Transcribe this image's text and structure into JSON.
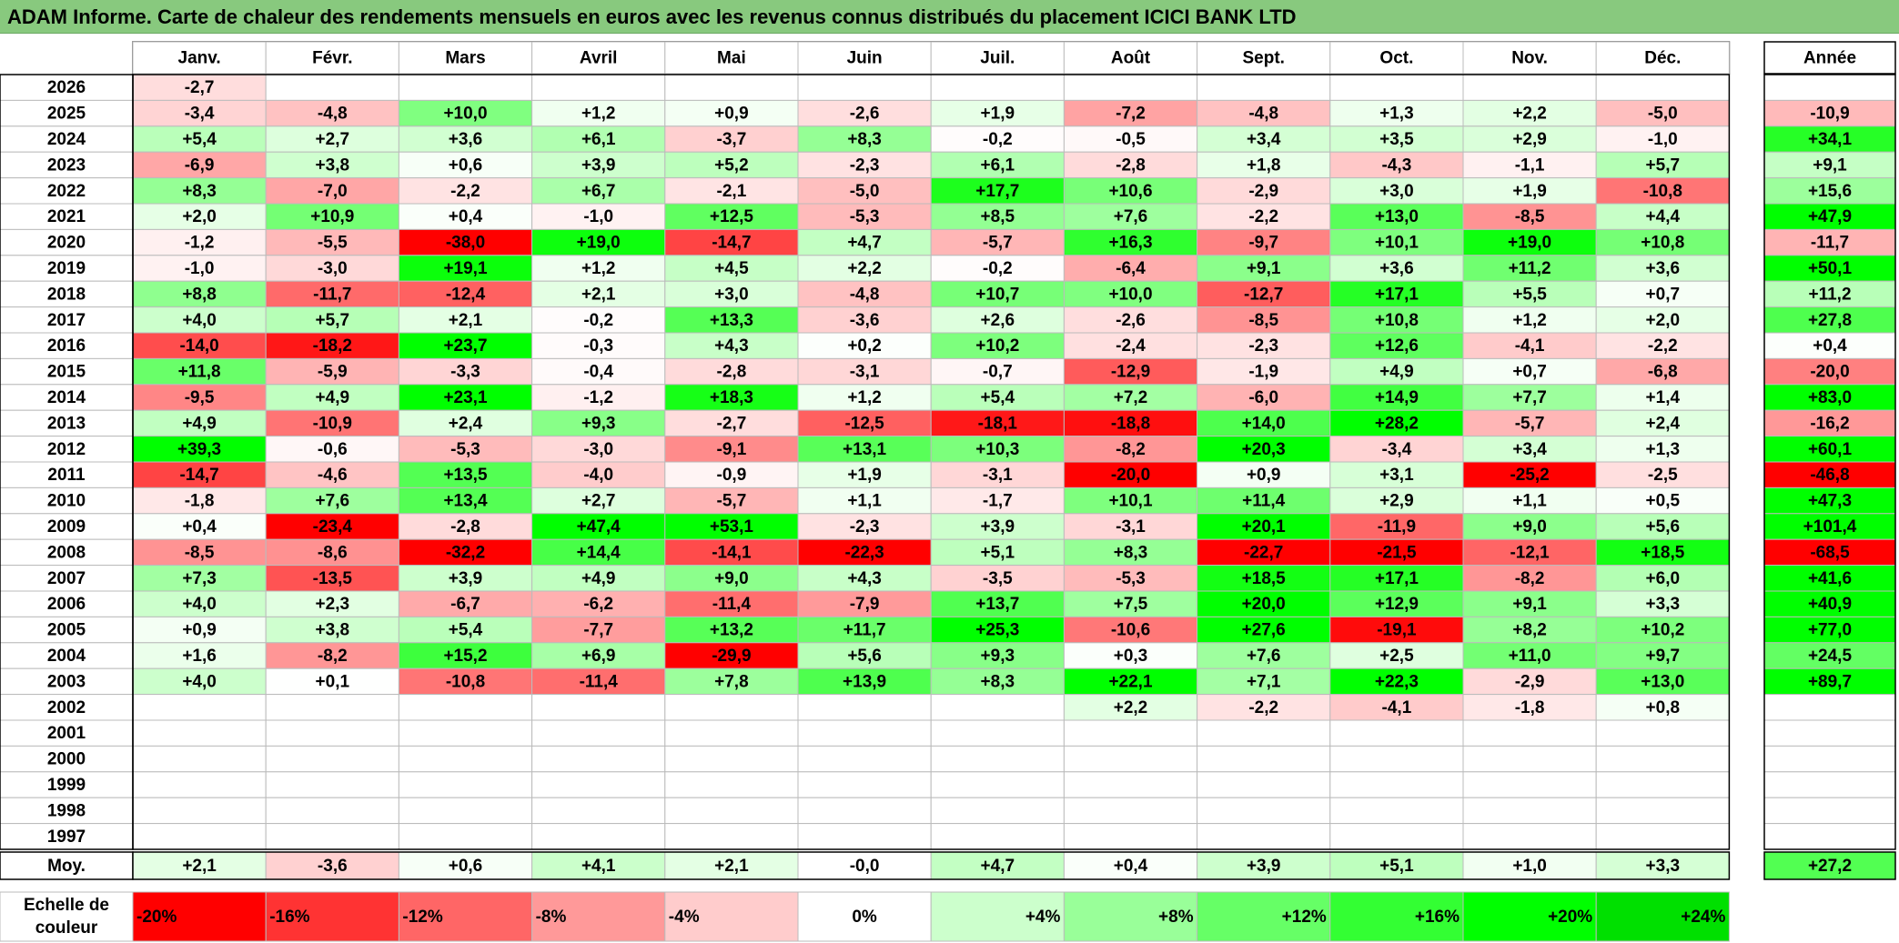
{
  "title": "ADAM Informe. Carte de chaleur des rendements mensuels en euros avec les revenus connus distribués du placement ICICI BANK LTD",
  "chart_data": {
    "type": "heatmap",
    "months": [
      "Janv.",
      "Févr.",
      "Mars",
      "Avril",
      "Mai",
      "Juin",
      "Juil.",
      "Août",
      "Sept.",
      "Oct.",
      "Nov.",
      "Déc."
    ],
    "year_header": "Année",
    "rows": [
      {
        "year": "2026",
        "months": [
          "-2,7",
          "",
          "",
          "",
          "",
          "",
          "",
          "",
          "",
          "",
          "",
          ""
        ],
        "annual": ""
      },
      {
        "year": "2025",
        "months": [
          "-3,4",
          "-4,8",
          "+10,0",
          "+1,2",
          "+0,9",
          "-2,6",
          "+1,9",
          "-7,2",
          "-4,8",
          "+1,3",
          "+2,2",
          "-5,0"
        ],
        "annual": "-10,9"
      },
      {
        "year": "2024",
        "months": [
          "+5,4",
          "+2,7",
          "+3,6",
          "+6,1",
          "-3,7",
          "+8,3",
          "-0,2",
          "-0,5",
          "+3,4",
          "+3,5",
          "+2,9",
          "-1,0"
        ],
        "annual": "+34,1"
      },
      {
        "year": "2023",
        "months": [
          "-6,9",
          "+3,8",
          "+0,6",
          "+3,9",
          "+5,2",
          "-2,3",
          "+6,1",
          "-2,8",
          "+1,8",
          "-4,3",
          "-1,1",
          "+5,7"
        ],
        "annual": "+9,1"
      },
      {
        "year": "2022",
        "months": [
          "+8,3",
          "-7,0",
          "-2,2",
          "+6,7",
          "-2,1",
          "-5,0",
          "+17,7",
          "+10,6",
          "-2,9",
          "+3,0",
          "+1,9",
          "-10,8"
        ],
        "annual": "+15,6"
      },
      {
        "year": "2021",
        "months": [
          "+2,0",
          "+10,9",
          "+0,4",
          "-1,0",
          "+12,5",
          "-5,3",
          "+8,5",
          "+7,6",
          "-2,2",
          "+13,0",
          "-8,5",
          "+4,4"
        ],
        "annual": "+47,9"
      },
      {
        "year": "2020",
        "months": [
          "-1,2",
          "-5,5",
          "-38,0",
          "+19,0",
          "-14,7",
          "+4,7",
          "-5,7",
          "+16,3",
          "-9,7",
          "+10,1",
          "+19,0",
          "+10,8"
        ],
        "annual": "-11,7"
      },
      {
        "year": "2019",
        "months": [
          "-1,0",
          "-3,0",
          "+19,1",
          "+1,2",
          "+4,5",
          "+2,2",
          "-0,2",
          "-6,4",
          "+9,1",
          "+3,6",
          "+11,2",
          "+3,6"
        ],
        "annual": "+50,1"
      },
      {
        "year": "2018",
        "months": [
          "+8,8",
          "-11,7",
          "-12,4",
          "+2,1",
          "+3,0",
          "-4,8",
          "+10,7",
          "+10,0",
          "-12,7",
          "+17,1",
          "+5,5",
          "+0,7"
        ],
        "annual": "+11,2"
      },
      {
        "year": "2017",
        "months": [
          "+4,0",
          "+5,7",
          "+2,1",
          "-0,2",
          "+13,3",
          "-3,6",
          "+2,6",
          "-2,6",
          "-8,5",
          "+10,8",
          "+1,2",
          "+2,0"
        ],
        "annual": "+27,8"
      },
      {
        "year": "2016",
        "months": [
          "-14,0",
          "-18,2",
          "+23,7",
          "-0,3",
          "+4,3",
          "+0,2",
          "+10,2",
          "-2,4",
          "-2,3",
          "+12,6",
          "-4,1",
          "-2,2"
        ],
        "annual": "+0,4"
      },
      {
        "year": "2015",
        "months": [
          "+11,8",
          "-5,9",
          "-3,3",
          "-0,4",
          "-2,8",
          "-3,1",
          "-0,7",
          "-12,9",
          "-1,9",
          "+4,9",
          "+0,7",
          "-6,8"
        ],
        "annual": "-20,0"
      },
      {
        "year": "2014",
        "months": [
          "-9,5",
          "+4,9",
          "+23,1",
          "-1,2",
          "+18,3",
          "+1,2",
          "+5,4",
          "+7,2",
          "-6,0",
          "+14,9",
          "+7,7",
          "+1,4"
        ],
        "annual": "+83,0"
      },
      {
        "year": "2013",
        "months": [
          "+4,9",
          "-10,9",
          "+2,4",
          "+9,3",
          "-2,7",
          "-12,5",
          "-18,1",
          "-18,8",
          "+14,0",
          "+28,2",
          "-5,7",
          "+2,4"
        ],
        "annual": "-16,2"
      },
      {
        "year": "2012",
        "months": [
          "+39,3",
          "-0,6",
          "-5,3",
          "-3,0",
          "-9,1",
          "+13,1",
          "+10,3",
          "-8,2",
          "+20,3",
          "-3,4",
          "+3,4",
          "+1,3"
        ],
        "annual": "+60,1"
      },
      {
        "year": "2011",
        "months": [
          "-14,7",
          "-4,6",
          "+13,5",
          "-4,0",
          "-0,9",
          "+1,9",
          "-3,1",
          "-20,0",
          "+0,9",
          "+3,1",
          "-25,2",
          "-2,5"
        ],
        "annual": "-46,8"
      },
      {
        "year": "2010",
        "months": [
          "-1,8",
          "+7,6",
          "+13,4",
          "+2,7",
          "-5,7",
          "+1,1",
          "-1,7",
          "+10,1",
          "+11,4",
          "+2,9",
          "+1,1",
          "+0,5"
        ],
        "annual": "+47,3"
      },
      {
        "year": "2009",
        "months": [
          "+0,4",
          "-23,4",
          "-2,8",
          "+47,4",
          "+53,1",
          "-2,3",
          "+3,9",
          "-3,1",
          "+20,1",
          "-11,9",
          "+9,0",
          "+5,6"
        ],
        "annual": "+101,4"
      },
      {
        "year": "2008",
        "months": [
          "-8,5",
          "-8,6",
          "-32,2",
          "+14,4",
          "-14,1",
          "-22,3",
          "+5,1",
          "+8,3",
          "-22,7",
          "-21,5",
          "-12,1",
          "+18,5"
        ],
        "annual": "-68,5"
      },
      {
        "year": "2007",
        "months": [
          "+7,3",
          "-13,5",
          "+3,9",
          "+4,9",
          "+9,0",
          "+4,3",
          "-3,5",
          "-5,3",
          "+18,5",
          "+17,1",
          "-8,2",
          "+6,0"
        ],
        "annual": "+41,6"
      },
      {
        "year": "2006",
        "months": [
          "+4,0",
          "+2,3",
          "-6,7",
          "-6,2",
          "-11,4",
          "-7,9",
          "+13,7",
          "+7,5",
          "+20,0",
          "+12,9",
          "+9,1",
          "+3,3"
        ],
        "annual": "+40,9"
      },
      {
        "year": "2005",
        "months": [
          "+0,9",
          "+3,8",
          "+5,4",
          "-7,7",
          "+13,2",
          "+11,7",
          "+25,3",
          "-10,6",
          "+27,6",
          "-19,1",
          "+8,2",
          "+10,2"
        ],
        "annual": "+77,0"
      },
      {
        "year": "2004",
        "months": [
          "+1,6",
          "-8,2",
          "+15,2",
          "+6,9",
          "-29,9",
          "+5,6",
          "+9,3",
          "+0,3",
          "+7,6",
          "+2,5",
          "+11,0",
          "+9,7"
        ],
        "annual": "+24,5"
      },
      {
        "year": "2003",
        "months": [
          "+4,0",
          "+0,1",
          "-10,8",
          "-11,4",
          "+7,8",
          "+13,9",
          "+8,3",
          "+22,1",
          "+7,1",
          "+22,3",
          "-2,9",
          "+13,0"
        ],
        "annual": "+89,7"
      },
      {
        "year": "2002",
        "months": [
          "",
          "",
          "",
          "",
          "",
          "",
          "",
          "+2,2",
          "-2,2",
          "-4,1",
          "-1,8",
          "+0,8"
        ],
        "annual": ""
      },
      {
        "year": "2001",
        "months": [
          "",
          "",
          "",
          "",
          "",
          "",
          "",
          "",
          "",
          "",
          "",
          ""
        ],
        "annual": ""
      },
      {
        "year": "2000",
        "months": [
          "",
          "",
          "",
          "",
          "",
          "",
          "",
          "",
          "",
          "",
          "",
          ""
        ],
        "annual": ""
      },
      {
        "year": "1999",
        "months": [
          "",
          "",
          "",
          "",
          "",
          "",
          "",
          "",
          "",
          "",
          "",
          ""
        ],
        "annual": ""
      },
      {
        "year": "1998",
        "months": [
          "",
          "",
          "",
          "",
          "",
          "",
          "",
          "",
          "",
          "",
          "",
          ""
        ],
        "annual": ""
      },
      {
        "year": "1997",
        "months": [
          "",
          "",
          "",
          "",
          "",
          "",
          "",
          "",
          "",
          "",
          "",
          ""
        ],
        "annual": ""
      }
    ],
    "average": {
      "label": "Moy.",
      "months": [
        "+2,1",
        "-3,6",
        "+0,6",
        "+4,1",
        "+2,1",
        "-0,0",
        "+4,7",
        "+0,4",
        "+3,9",
        "+5,1",
        "+1,0",
        "+3,3"
      ],
      "annual": "+27,2"
    },
    "color_scale": {
      "label": "Echelle de couleur",
      "items": [
        {
          "text": "-20%",
          "color": "#ff0000"
        },
        {
          "text": "-16%",
          "color": "#ff3333"
        },
        {
          "text": "-12%",
          "color": "#ff6666"
        },
        {
          "text": "-8%",
          "color": "#ff9999"
        },
        {
          "text": "-4%",
          "color": "#ffcccc"
        },
        {
          "text": "0%",
          "color": "#ffffff"
        },
        {
          "text": "+4%",
          "color": "#ccffcc"
        },
        {
          "text": "+8%",
          "color": "#99ff99"
        },
        {
          "text": "+12%",
          "color": "#66ff66"
        },
        {
          "text": "+16%",
          "color": "#33ff33"
        },
        {
          "text": "+20%",
          "color": "#00ff00"
        },
        {
          "text": "+24%",
          "color": "#00e000"
        }
      ]
    },
    "colors": {
      "negative_max": "#ff0000",
      "neutral": "#ffffff",
      "positive_max": "#00ff00",
      "title_background": "#88c97e"
    }
  }
}
